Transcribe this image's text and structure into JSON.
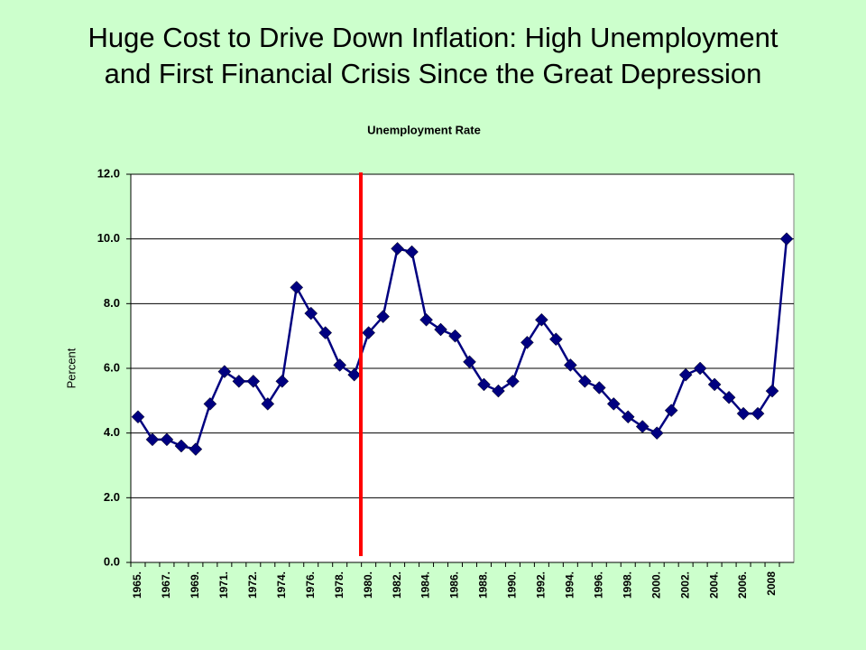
{
  "slide_title": [
    "Huge Cost to Drive Down Inflation: High Unemployment",
    "and First Financial Crisis Since the Great Depression"
  ],
  "chart_data": {
    "type": "line",
    "title": "Unemployment Rate",
    "y_label": "Percent",
    "categories": [
      "1965.",
      null,
      "1967.",
      null,
      "1969.",
      null,
      "1971.",
      null,
      "1972.",
      null,
      "1974.",
      null,
      "1976.",
      null,
      "1978.",
      null,
      "1980.",
      null,
      "1982.",
      null,
      "1984.",
      null,
      "1986.",
      null,
      "1988.",
      null,
      "1990.",
      null,
      "1992.",
      null,
      "1994.",
      null,
      "1996.",
      null,
      "1998.",
      null,
      "2000.",
      null,
      "2002.",
      null,
      "2004.",
      null,
      "2006.",
      null,
      "2008",
      null
    ],
    "series": [
      {
        "name": "Unemployment Rate",
        "color": "#000080",
        "values": [
          4.5,
          3.8,
          3.8,
          3.6,
          3.5,
          4.9,
          5.9,
          5.6,
          5.6,
          4.9,
          5.6,
          8.5,
          7.7,
          7.1,
          6.1,
          5.8,
          7.1,
          7.6,
          9.7,
          9.6,
          7.5,
          7.2,
          7.0,
          6.2,
          5.5,
          5.3,
          5.6,
          6.8,
          7.5,
          6.9,
          6.1,
          5.6,
          5.4,
          4.9,
          4.5,
          4.2,
          4.0,
          4.7,
          5.8,
          6.0,
          5.5,
          5.1,
          4.6,
          4.6,
          5.3,
          10.0
        ]
      }
    ],
    "ylim": [
      0,
      12
    ],
    "yticks": [
      {
        "value": 0,
        "label": "0.0"
      },
      {
        "value": 2,
        "label": "2.0"
      },
      {
        "value": 4,
        "label": "4.0"
      },
      {
        "value": 6,
        "label": "6.0"
      },
      {
        "value": 8,
        "label": "8.0"
      },
      {
        "value": 10,
        "label": "10.0"
      },
      {
        "value": 12,
        "label": "12.0"
      }
    ],
    "grid": true
  }
}
